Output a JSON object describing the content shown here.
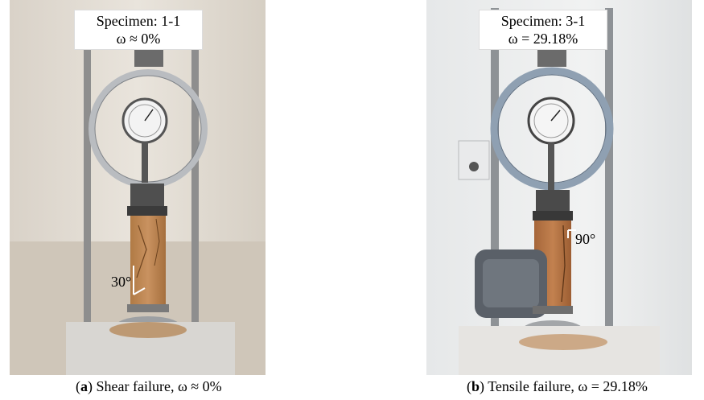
{
  "panels": [
    {
      "specimen": "Specimen: 1-1",
      "omega": "ω ≈ 0%",
      "angle": "30°",
      "caption_letter": "a",
      "caption_text": "Shear failure, ω ≈ 0%"
    },
    {
      "specimen": "Specimen: 3-1",
      "omega": "ω = 29.18%",
      "angle": "90°",
      "caption_letter": "b",
      "caption_text": "Tensile failure, ω = 29.18%"
    }
  ]
}
